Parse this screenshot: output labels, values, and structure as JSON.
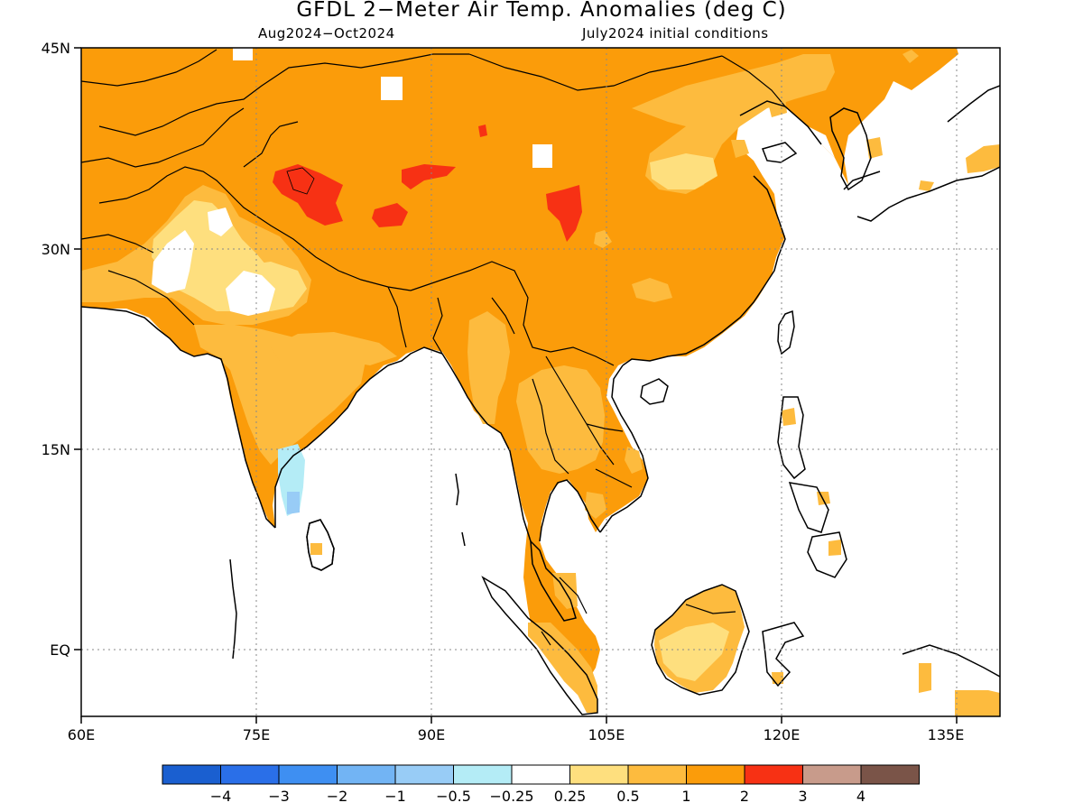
{
  "title": "GFDL 2−Meter Air Temp. Anomalies (deg C)",
  "subtitle_left": "Aug2024−Oct2024",
  "subtitle_right": "July2024 initial conditions",
  "lon_ticks": [
    "60E",
    "75E",
    "90E",
    "105E",
    "120E",
    "135E"
  ],
  "lat_ticks": [
    "45N",
    "30N",
    "15N",
    "EQ"
  ],
  "colorbar": {
    "colors": [
      "#1a5fd0",
      "#2a6fe8",
      "#3e8ff2",
      "#72b4f4",
      "#98ccf6",
      "#b4ecf6",
      "#ffffff",
      "#fedf7e",
      "#fdbb3e",
      "#fb9c0a",
      "#f73114",
      "#c89b8b",
      "#7a5448"
    ],
    "labels": [
      "−4",
      "−3",
      "−2",
      "−1",
      "−0.5",
      "−0.25",
      "0.25",
      "0.5",
      "1",
      "2",
      "3",
      "4"
    ]
  },
  "legend_colors": {
    "ocean": "#ffffff",
    "base_anomaly_1_to_2": "#fb9c0a",
    "anomaly_0.5_to_1": "#fdbb3e",
    "anomaly_0.25_to_0.5": "#fedf7e",
    "anomaly_2_to_3": "#f73114",
    "anomaly_-0.5_to_-0.25": "#b4ecf6",
    "anomaly_-1_to_-0.5": "#98ccf6",
    "coastline": "#000000"
  }
}
